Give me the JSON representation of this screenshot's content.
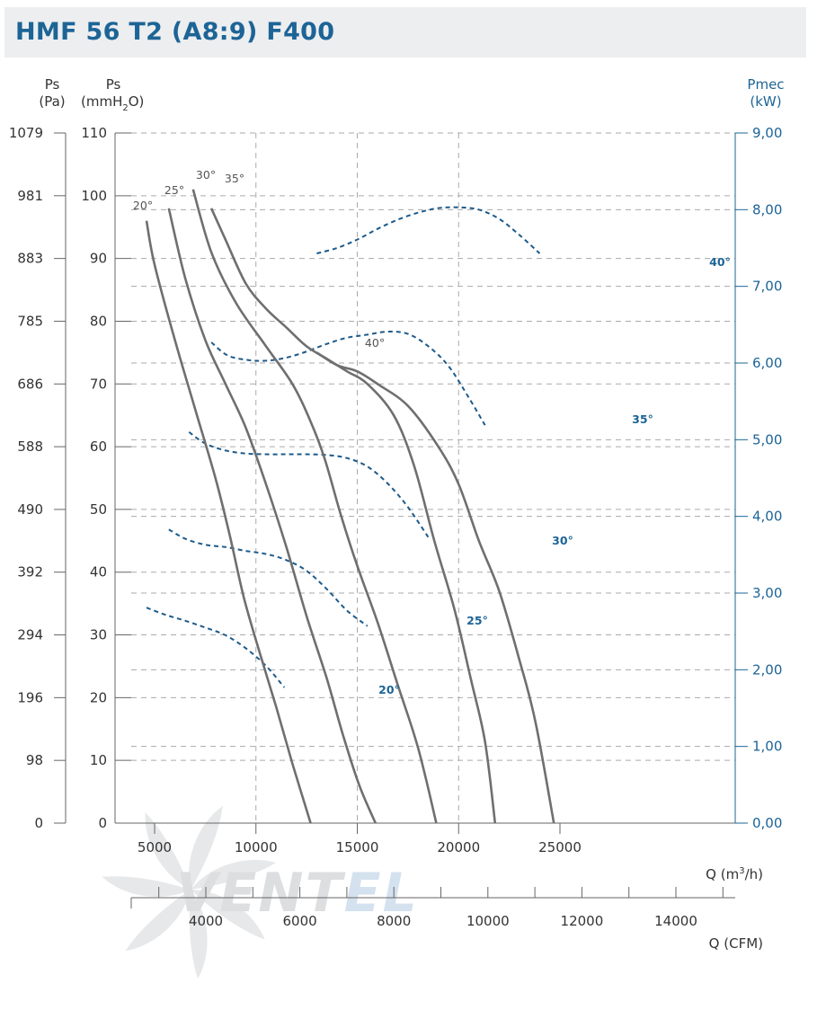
{
  "title": "HMF 56 T2 (A8:9) F400",
  "logo_text": "VENTEL",
  "chart_data": {
    "type": "line",
    "axes": {
      "left_pa": {
        "label": "Ps",
        "unit": "(Pa)",
        "ticks": [
          "1079",
          "981",
          "883",
          "785",
          "686",
          "588",
          "490",
          "392",
          "294",
          "196",
          "98",
          "0"
        ]
      },
      "left_mmh2o": {
        "label": "Ps",
        "unit_prefix": "(mmH",
        "unit_sub": "2",
        "unit_suffix": "O)",
        "ticks": [
          "110",
          "100",
          "90",
          "80",
          "70",
          "60",
          "50",
          "40",
          "30",
          "20",
          "10",
          "0"
        ],
        "ylim": [
          0,
          110
        ]
      },
      "right_power": {
        "label": "Pmec",
        "unit": "(kW)",
        "ticks": [
          "9,00",
          "8,00",
          "7,00",
          "6,00",
          "5,00",
          "4,00",
          "3,00",
          "2,00",
          "1,00",
          "0,00"
        ],
        "ylim": [
          0,
          9
        ]
      },
      "x_m3h": {
        "label_prefix": "Q (m",
        "label_sup": "3",
        "label_suffix": "/h)",
        "ticks": [
          "5000",
          "10000",
          "15000",
          "20000",
          "25000"
        ],
        "xlim": [
          4000,
          27500
        ]
      },
      "x_cfm": {
        "label": "Q (CFM)",
        "ticks": [
          "4000",
          "6000",
          "8000",
          "10000",
          "12000",
          "14000"
        ]
      }
    },
    "grid": true,
    "pressure_series": [
      {
        "name": "20°",
        "points": [
          [
            4600,
            96
          ],
          [
            5000,
            89
          ],
          [
            6000,
            77
          ],
          [
            7000,
            66
          ],
          [
            8000,
            55
          ],
          [
            8700,
            46
          ],
          [
            9400,
            36
          ],
          [
            10200,
            27
          ],
          [
            11000,
            18.5
          ],
          [
            11800,
            9.5
          ],
          [
            12700,
            0
          ]
        ]
      },
      {
        "name": "25°",
        "points": [
          [
            5700,
            98
          ],
          [
            6500,
            87
          ],
          [
            7500,
            77
          ],
          [
            8500,
            70
          ],
          [
            9500,
            63
          ],
          [
            10500,
            54
          ],
          [
            11500,
            44
          ],
          [
            12500,
            33
          ],
          [
            13500,
            23
          ],
          [
            14300,
            14
          ],
          [
            15100,
            6
          ],
          [
            15900,
            0
          ]
        ]
      },
      {
        "name": "30°",
        "points": [
          [
            6900,
            101
          ],
          [
            7800,
            91
          ],
          [
            9000,
            83
          ],
          [
            10500,
            76
          ],
          [
            11800,
            70
          ],
          [
            12700,
            64
          ],
          [
            13400,
            58
          ],
          [
            14200,
            49
          ],
          [
            15000,
            41
          ],
          [
            16000,
            32
          ],
          [
            17000,
            22
          ],
          [
            18000,
            12
          ],
          [
            18900,
            0
          ]
        ]
      },
      {
        "name": "35°",
        "points": [
          [
            7800,
            98
          ],
          [
            8500,
            93
          ],
          [
            9500,
            86
          ],
          [
            10500,
            82
          ],
          [
            11500,
            79
          ],
          [
            12500,
            76
          ],
          [
            13500,
            74
          ],
          [
            14500,
            72
          ],
          [
            15500,
            70
          ],
          [
            16800,
            65
          ],
          [
            17800,
            57
          ],
          [
            18800,
            45
          ],
          [
            19800,
            34
          ],
          [
            20600,
            23
          ],
          [
            21300,
            13
          ],
          [
            21800,
            0
          ]
        ]
      },
      {
        "name": "40°",
        "points": [
          [
            13000,
            75
          ],
          [
            14000,
            73
          ],
          [
            15000,
            72
          ],
          [
            16000,
            70
          ],
          [
            17500,
            66.5
          ],
          [
            19000,
            60
          ],
          [
            20000,
            54
          ],
          [
            21000,
            45
          ],
          [
            22000,
            37
          ],
          [
            23000,
            26
          ],
          [
            23800,
            16
          ],
          [
            24700,
            0
          ]
        ]
      }
    ],
    "power_series": [
      {
        "name": "20°",
        "points": [
          [
            4600,
            2.81
          ],
          [
            5500,
            2.72
          ],
          [
            6500,
            2.64
          ],
          [
            7500,
            2.55
          ],
          [
            8500,
            2.45
          ],
          [
            9500,
            2.28
          ],
          [
            10500,
            2.05
          ],
          [
            11400,
            1.77
          ],
          [
            12800,
            1.75
          ]
        ]
      },
      {
        "name": "25°",
        "points": [
          [
            5700,
            3.83
          ],
          [
            6500,
            3.71
          ],
          [
            7500,
            3.63
          ],
          [
            8500,
            3.6
          ],
          [
            9500,
            3.55
          ],
          [
            10500,
            3.51
          ],
          [
            11500,
            3.43
          ],
          [
            12500,
            3.29
          ],
          [
            13500,
            3.05
          ],
          [
            14500,
            2.77
          ],
          [
            15500,
            2.57
          ],
          [
            16900,
            2.59
          ]
        ]
      },
      {
        "name": "30°",
        "points": [
          [
            6700,
            5.1
          ],
          [
            7500,
            4.95
          ],
          [
            8500,
            4.86
          ],
          [
            9500,
            4.82
          ],
          [
            10500,
            4.81
          ],
          [
            11500,
            4.81
          ],
          [
            12500,
            4.81
          ],
          [
            13500,
            4.8
          ],
          [
            14500,
            4.76
          ],
          [
            15500,
            4.65
          ],
          [
            16500,
            4.43
          ],
          [
            17500,
            4.12
          ],
          [
            18500,
            3.73
          ],
          [
            19500,
            3.73
          ]
        ]
      },
      {
        "name": "35°",
        "points": [
          [
            7800,
            6.27
          ],
          [
            8600,
            6.1
          ],
          [
            9600,
            6.04
          ],
          [
            10500,
            6.03
          ],
          [
            11500,
            6.07
          ],
          [
            12500,
            6.15
          ],
          [
            13500,
            6.25
          ],
          [
            14500,
            6.33
          ],
          [
            15500,
            6.37
          ],
          [
            16500,
            6.41
          ],
          [
            17500,
            6.38
          ],
          [
            18500,
            6.22
          ],
          [
            19500,
            5.96
          ],
          [
            20500,
            5.55
          ],
          [
            21300,
            5.19
          ],
          [
            22300,
            5.27
          ]
        ]
      },
      {
        "name": "40°",
        "points": [
          [
            13000,
            7.43
          ],
          [
            14000,
            7.5
          ],
          [
            15000,
            7.61
          ],
          [
            16000,
            7.75
          ],
          [
            17000,
            7.87
          ],
          [
            18000,
            7.96
          ],
          [
            19000,
            8.02
          ],
          [
            20000,
            8.03
          ],
          [
            21000,
            8.0
          ],
          [
            22000,
            7.88
          ],
          [
            23000,
            7.67
          ],
          [
            24000,
            7.43
          ],
          [
            24800,
            7.26
          ]
        ]
      }
    ],
    "pressure_labels": [
      "20°",
      "25°",
      "30°",
      "35°",
      "40°"
    ],
    "power_labels": [
      "20°",
      "25°",
      "30°",
      "35°",
      "40°"
    ]
  },
  "colors": {
    "pressure": "#6f6f6f",
    "power": "#1d5a8a",
    "grid": "#aaaaaa",
    "title": "#1d6496",
    "axis_left": "#666666",
    "axis_right": "#1d6496"
  }
}
